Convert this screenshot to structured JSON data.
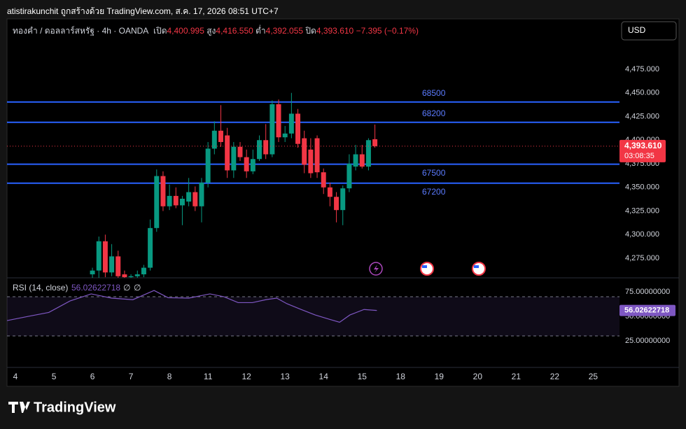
{
  "header": {
    "attribution": "atistirakunchit ถูกสร้างด้วย TradingView.com, ส.ค. 17, 2026 08:51 UTC+7",
    "symbol": "ทองคำ / ดอลลาร์สหรัฐ · 4h · OANDA",
    "open_label": "เปิด",
    "open": "4,400.995",
    "high_label": "สูง",
    "high": "4,416.550",
    "low_label": "ต่ำ",
    "low": "4,392.055",
    "close_label": "ปิด",
    "close": "4,393.610",
    "change": "−7.395 (−0.17%)",
    "currency": "USD",
    "brand": "TradingView"
  },
  "chart_data": [
    {
      "type": "candlestick",
      "x": [
        12,
        13,
        14,
        15,
        16,
        17,
        18,
        19,
        20,
        21,
        22,
        23,
        24,
        25,
        26,
        27,
        28,
        29,
        30,
        31,
        32,
        33,
        34,
        35,
        36,
        37,
        38,
        39,
        40,
        41,
        42,
        43,
        44,
        45,
        46,
        47,
        48,
        49,
        50,
        51,
        52,
        53,
        54,
        55,
        56
      ],
      "open": [
        4258,
        4262,
        4293,
        4260,
        4277,
        4258,
        4255,
        4256,
        4258,
        4265,
        4307,
        4362,
        4330,
        4341,
        4331,
        4335,
        4345,
        4330,
        4355,
        4391,
        4410,
        4405,
        4368,
        4393,
        4382,
        4367,
        4380,
        4400,
        4385,
        4438,
        4403,
        4407,
        4428,
        4402,
        4390,
        4402,
        4366,
        4350,
        4340,
        4326,
        4349,
        4372,
        4385,
        4372,
        4400.995
      ],
      "high": [
        4265,
        4298,
        4300,
        4290,
        4283,
        4262,
        4258,
        4262,
        4268,
        4316,
        4369,
        4367,
        4353,
        4350,
        4341,
        4360,
        4351,
        4360,
        4398,
        4420,
        4437,
        4413,
        4398,
        4398,
        4390,
        4390,
        4405,
        4417,
        4442,
        4443,
        4415,
        4450,
        4433,
        4410,
        4402,
        4405,
        4370,
        4355,
        4345,
        4352,
        4385,
        4395,
        4395,
        4402,
        4416.55
      ],
      "low": [
        4254,
        4254,
        4255,
        4256,
        4254,
        4254,
        4254,
        4254,
        4255,
        4262,
        4303,
        4325,
        4326,
        4328,
        4310,
        4330,
        4325,
        4313,
        4350,
        4385,
        4393,
        4360,
        4360,
        4378,
        4360,
        4364,
        4378,
        4380,
        4382,
        4398,
        4398,
        4402,
        4392,
        4365,
        4360,
        4360,
        4343,
        4330,
        4313,
        4310,
        4345,
        4368,
        4370,
        4368,
        4392.055
      ],
      "close": [
        4262,
        4293,
        4260,
        4277,
        4256,
        4255,
        4256,
        4258,
        4265,
        4307,
        4362,
        4330,
        4341,
        4331,
        4338,
        4345,
        4330,
        4355,
        4391,
        4410,
        4398,
        4368,
        4393,
        4382,
        4367,
        4380,
        4400,
        4385,
        4438,
        4403,
        4407,
        4428,
        4396,
        4374,
        4365,
        4366,
        4350,
        4340,
        4326,
        4349,
        4375,
        4385,
        4372,
        4400,
        4393.61
      ],
      "colors": {
        "up": "#089981",
        "down": "#f23645"
      },
      "xlim": [
        -1.31,
        94.1
      ],
      "xticks": [
        {
          "value": 0,
          "label": "4"
        },
        {
          "value": 6,
          "label": "5"
        },
        {
          "value": 12,
          "label": "6"
        },
        {
          "value": 18,
          "label": "7"
        },
        {
          "value": 24,
          "label": "8"
        },
        {
          "value": 30,
          "label": "11"
        },
        {
          "value": 36,
          "label": "12"
        },
        {
          "value": 42,
          "label": "13"
        },
        {
          "value": 48,
          "label": "14"
        },
        {
          "value": 54,
          "label": "15"
        },
        {
          "value": 60,
          "label": "18"
        },
        {
          "value": 66,
          "label": "19"
        },
        {
          "value": 72,
          "label": "20"
        },
        {
          "value": 78,
          "label": "21"
        },
        {
          "value": 84,
          "label": "22"
        },
        {
          "value": 90,
          "label": "25"
        }
      ],
      "ylim": [
        4254.3,
        4528.3
      ],
      "yticks": [
        {
          "value": 4275,
          "label": "4,275.000"
        },
        {
          "value": 4300,
          "label": "4,300.000"
        },
        {
          "value": 4325,
          "label": "4,325.000"
        },
        {
          "value": 4350,
          "label": "4,350.000"
        },
        {
          "value": 4375,
          "label": "4,375.000"
        },
        {
          "value": 4400,
          "label": "4,400.000"
        },
        {
          "value": 4425,
          "label": "4,425.000"
        },
        {
          "value": 4450,
          "label": "4,450.000"
        },
        {
          "value": 4475,
          "label": "4,475.000"
        }
      ],
      "levels": [
        4440.4,
        4418.9,
        4374.5,
        4354.5
      ],
      "level_labels": [
        "68500",
        "68200",
        "67500",
        "67200"
      ],
      "level_color": "#2962ff",
      "last_price": 4393.61,
      "last_price_label": "4,393.610",
      "countdown": "03:08:35"
    },
    {
      "type": "line",
      "x": [
        -1.3,
        2,
        5.2,
        8.5,
        11.8,
        15,
        18.3,
        21.6,
        23.8,
        27,
        30.3,
        32.5,
        34.7,
        36.9,
        39,
        40.7,
        42.3,
        44.5,
        46.7,
        48.9,
        50.5,
        52.1,
        54.3,
        56.3
      ],
      "series": [
        {
          "name": "RSI (14, close)",
          "color": "#7e57c2",
          "values": [
            45.7,
            50,
            54,
            65.7,
            72.9,
            68.6,
            67,
            76.4,
            69,
            68.6,
            72.9,
            70,
            64,
            64,
            67,
            68.6,
            62.9,
            57,
            51.4,
            47,
            44,
            51.4,
            57,
            56.02622718
          ]
        }
      ],
      "extra": [
        "∅",
        "∅"
      ],
      "ylim": [
        -2.1,
        89.3
      ],
      "yticks": [
        {
          "value": 25,
          "label": "25.00000000"
        },
        {
          "value": 50,
          "label": "50.00000000"
        },
        {
          "value": 75,
          "label": "75.00000000"
        }
      ],
      "bands": [
        70,
        30
      ]
    }
  ]
}
